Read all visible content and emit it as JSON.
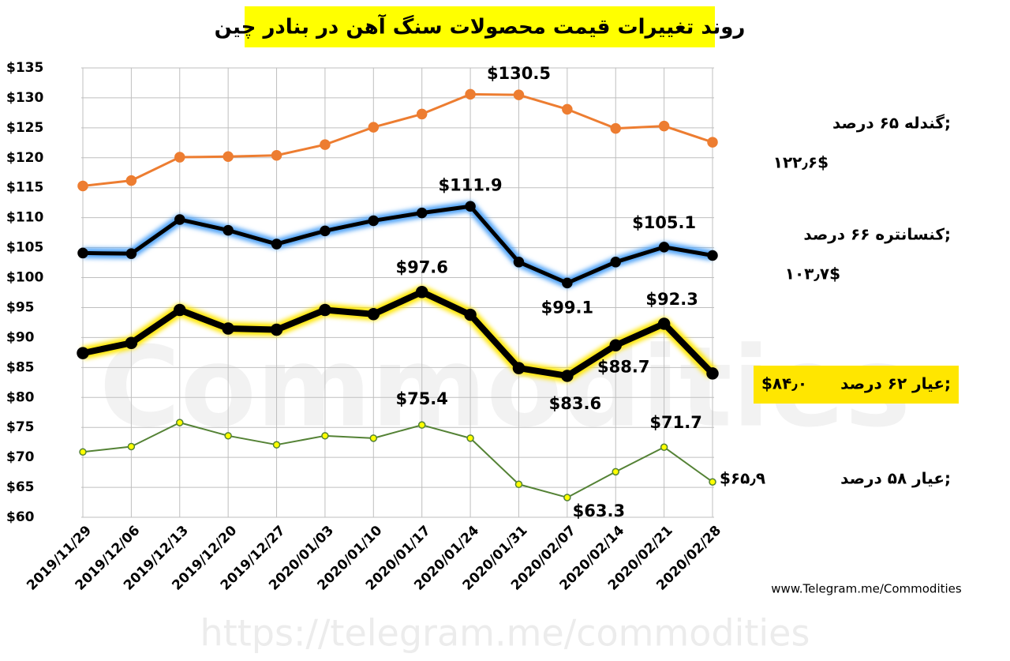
{
  "chart_data": {
    "type": "line",
    "title": "روند تغییرات قیمت محصولات سنگ آهن در بنادر چین",
    "source": "www.Telegram.me/Commodities",
    "watermarks": [
      "Commodities",
      "https://telegram.me/commodities"
    ],
    "categories": [
      "2019/11/29",
      "2019/12/06",
      "2019/12/13",
      "2019/12/20",
      "2019/12/27",
      "2020/01/03",
      "2020/01/10",
      "2020/01/17",
      "2020/01/24",
      "2020/01/31",
      "2020/02/07",
      "2020/02/14",
      "2020/02/21",
      "2020/02/28"
    ],
    "ylim": [
      60,
      135
    ],
    "yticks": [
      {
        "value": 60,
        "label": "$60"
      },
      {
        "value": 65,
        "label": "$65"
      },
      {
        "value": 70,
        "label": "$70"
      },
      {
        "value": 75,
        "label": "$75"
      },
      {
        "value": 80,
        "label": "$80"
      },
      {
        "value": 85,
        "label": "$85"
      },
      {
        "value": 90,
        "label": "$90"
      },
      {
        "value": 95,
        "label": "$95"
      },
      {
        "value": 100,
        "label": "$100"
      },
      {
        "value": 105,
        "label": "$105"
      },
      {
        "value": 110,
        "label": "$110"
      },
      {
        "value": 115,
        "label": "$115"
      },
      {
        "value": 120,
        "label": "$120"
      },
      {
        "value": 125,
        "label": "$125"
      },
      {
        "value": 130,
        "label": "$130"
      },
      {
        "value": 135,
        "label": "$135"
      }
    ],
    "grid": true,
    "series": [
      {
        "name": "گندله ۶۵ درصد;",
        "color": "#ed7d31",
        "values": [
          115.3,
          116.2,
          120.1,
          120.2,
          120.4,
          122.2,
          125.1,
          127.3,
          130.6,
          130.5,
          128.1,
          124.9,
          125.3,
          122.6
        ],
        "value_labels": [
          null,
          null,
          null,
          null,
          null,
          null,
          null,
          null,
          null,
          "$130.5",
          null,
          null,
          null,
          "۱۲۲٫۶$"
        ]
      },
      {
        "name": "کنسانتره ۶۶ درصد;",
        "color": "#000000",
        "glow": "#4fa3f7",
        "values": [
          104.1,
          104.0,
          109.7,
          107.9,
          105.6,
          107.8,
          109.5,
          110.8,
          111.9,
          102.6,
          99.1,
          102.6,
          105.1,
          103.7
        ],
        "value_labels": [
          null,
          null,
          null,
          null,
          null,
          null,
          null,
          null,
          "$111.9",
          null,
          "$99.1",
          null,
          "$105.1",
          "۱۰۳٫۷$"
        ]
      },
      {
        "name": "عیار ۶۲ درصد;",
        "color": "#000000",
        "glow": "#ffe600",
        "values": [
          87.4,
          89.1,
          94.6,
          91.5,
          91.3,
          94.6,
          93.9,
          97.6,
          93.8,
          84.9,
          83.6,
          88.7,
          92.3,
          84.0
        ],
        "value_labels": [
          null,
          null,
          null,
          null,
          null,
          null,
          null,
          "$97.6",
          null,
          null,
          "$83.6",
          "$88.7",
          "$92.3",
          "$۸۴٫۰"
        ]
      },
      {
        "name": "عیار ۵۸ درصد;",
        "color": "#548235",
        "values": [
          70.9,
          71.8,
          75.8,
          73.6,
          72.1,
          73.6,
          73.2,
          75.4,
          73.2,
          65.5,
          63.3,
          67.6,
          71.7,
          65.9
        ],
        "value_labels": [
          null,
          null,
          null,
          null,
          null,
          null,
          null,
          "$75.4",
          null,
          null,
          "$63.3",
          null,
          "$71.7",
          "$۶۵٫۹"
        ]
      }
    ]
  }
}
